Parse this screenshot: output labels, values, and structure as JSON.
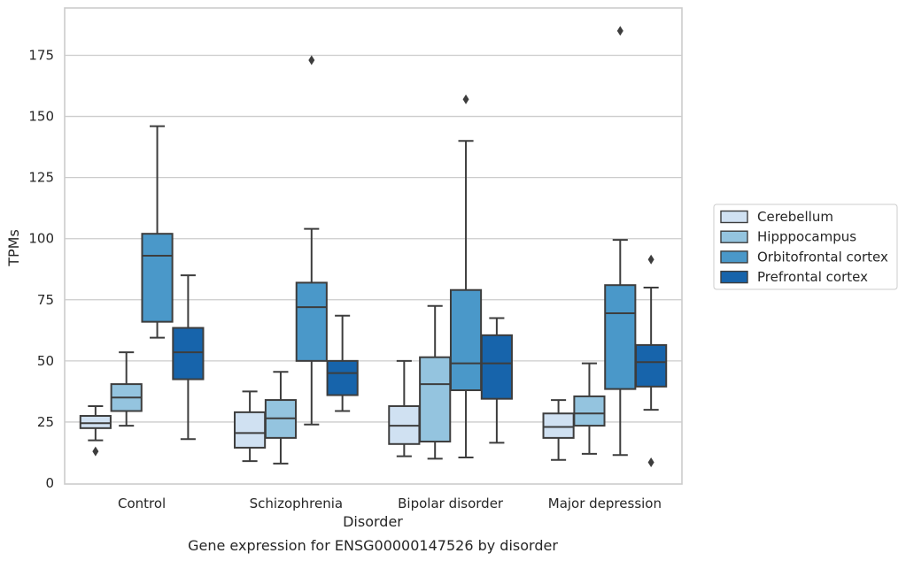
{
  "chart_data": {
    "type": "boxplot",
    "xlabel": "Disorder",
    "ylabel": "TPMs",
    "caption": "Gene expression for ENSG00000147526 by disorder",
    "ylim": [
      0,
      195
    ],
    "yticks": [
      0,
      25,
      50,
      75,
      100,
      125,
      150,
      175
    ],
    "grid": "horizontal",
    "legend_position": "right",
    "categories": [
      "Control",
      "Schizophrenia",
      "Bipolar disorder",
      "Major depression"
    ],
    "series": [
      {
        "name": "Cerebellum",
        "color": "#d0e1f2",
        "boxes": [
          {
            "whislo": 17.5,
            "q1": 22.5,
            "med": 24.5,
            "q3": 27.5,
            "whishi": 31.5,
            "fliers": [
              13
            ]
          },
          {
            "whislo": 9,
            "q1": 14.5,
            "med": 20.5,
            "q3": 29,
            "whishi": 37.5,
            "fliers": []
          },
          {
            "whislo": 11,
            "q1": 16,
            "med": 23.5,
            "q3": 31.5,
            "whishi": 50,
            "fliers": []
          },
          {
            "whislo": 9.5,
            "q1": 18.5,
            "med": 23,
            "q3": 28.5,
            "whishi": 34,
            "fliers": []
          }
        ]
      },
      {
        "name": "Hipppocampus",
        "color": "#94c4df",
        "boxes": [
          {
            "whislo": 23.5,
            "q1": 29.5,
            "med": 35,
            "q3": 40.5,
            "whishi": 53.5,
            "fliers": []
          },
          {
            "whislo": 8,
            "q1": 18.5,
            "med": 26.5,
            "q3": 34,
            "whishi": 45.5,
            "fliers": []
          },
          {
            "whislo": 10,
            "q1": 17,
            "med": 40.5,
            "q3": 51.5,
            "whishi": 72.5,
            "fliers": []
          },
          {
            "whislo": 12,
            "q1": 23.5,
            "med": 28.5,
            "q3": 35.5,
            "whishi": 49,
            "fliers": []
          }
        ]
      },
      {
        "name": "Orbitofrontal cortex",
        "color": "#4a98c9",
        "boxes": [
          {
            "whislo": 59.5,
            "q1": 66,
            "med": 93,
            "q3": 102,
            "whishi": 146,
            "fliers": []
          },
          {
            "whislo": 24,
            "q1": 50,
            "med": 72,
            "q3": 82,
            "whishi": 104,
            "fliers": [
              173
            ]
          },
          {
            "whislo": 10.5,
            "q1": 38,
            "med": 49,
            "q3": 79,
            "whishi": 140,
            "fliers": [
              157
            ]
          },
          {
            "whislo": 11.5,
            "q1": 38.5,
            "med": 69.5,
            "q3": 81,
            "whishi": 99.5,
            "fliers": [
              185
            ]
          }
        ]
      },
      {
        "name": "Prefrontal cortex",
        "color": "#1764ab",
        "boxes": [
          {
            "whislo": 18,
            "q1": 42.5,
            "med": 53.5,
            "q3": 63.5,
            "whishi": 85,
            "fliers": []
          },
          {
            "whislo": 29.5,
            "q1": 36,
            "med": 45,
            "q3": 50,
            "whishi": 68.5,
            "fliers": []
          },
          {
            "whislo": 16.5,
            "q1": 34.5,
            "med": 49,
            "q3": 60.5,
            "whishi": 67.5,
            "fliers": []
          },
          {
            "whislo": 30,
            "q1": 39.5,
            "med": 49.5,
            "q3": 56.5,
            "whishi": 80,
            "fliers": [
              8.5,
              91.5
            ]
          }
        ]
      }
    ]
  }
}
